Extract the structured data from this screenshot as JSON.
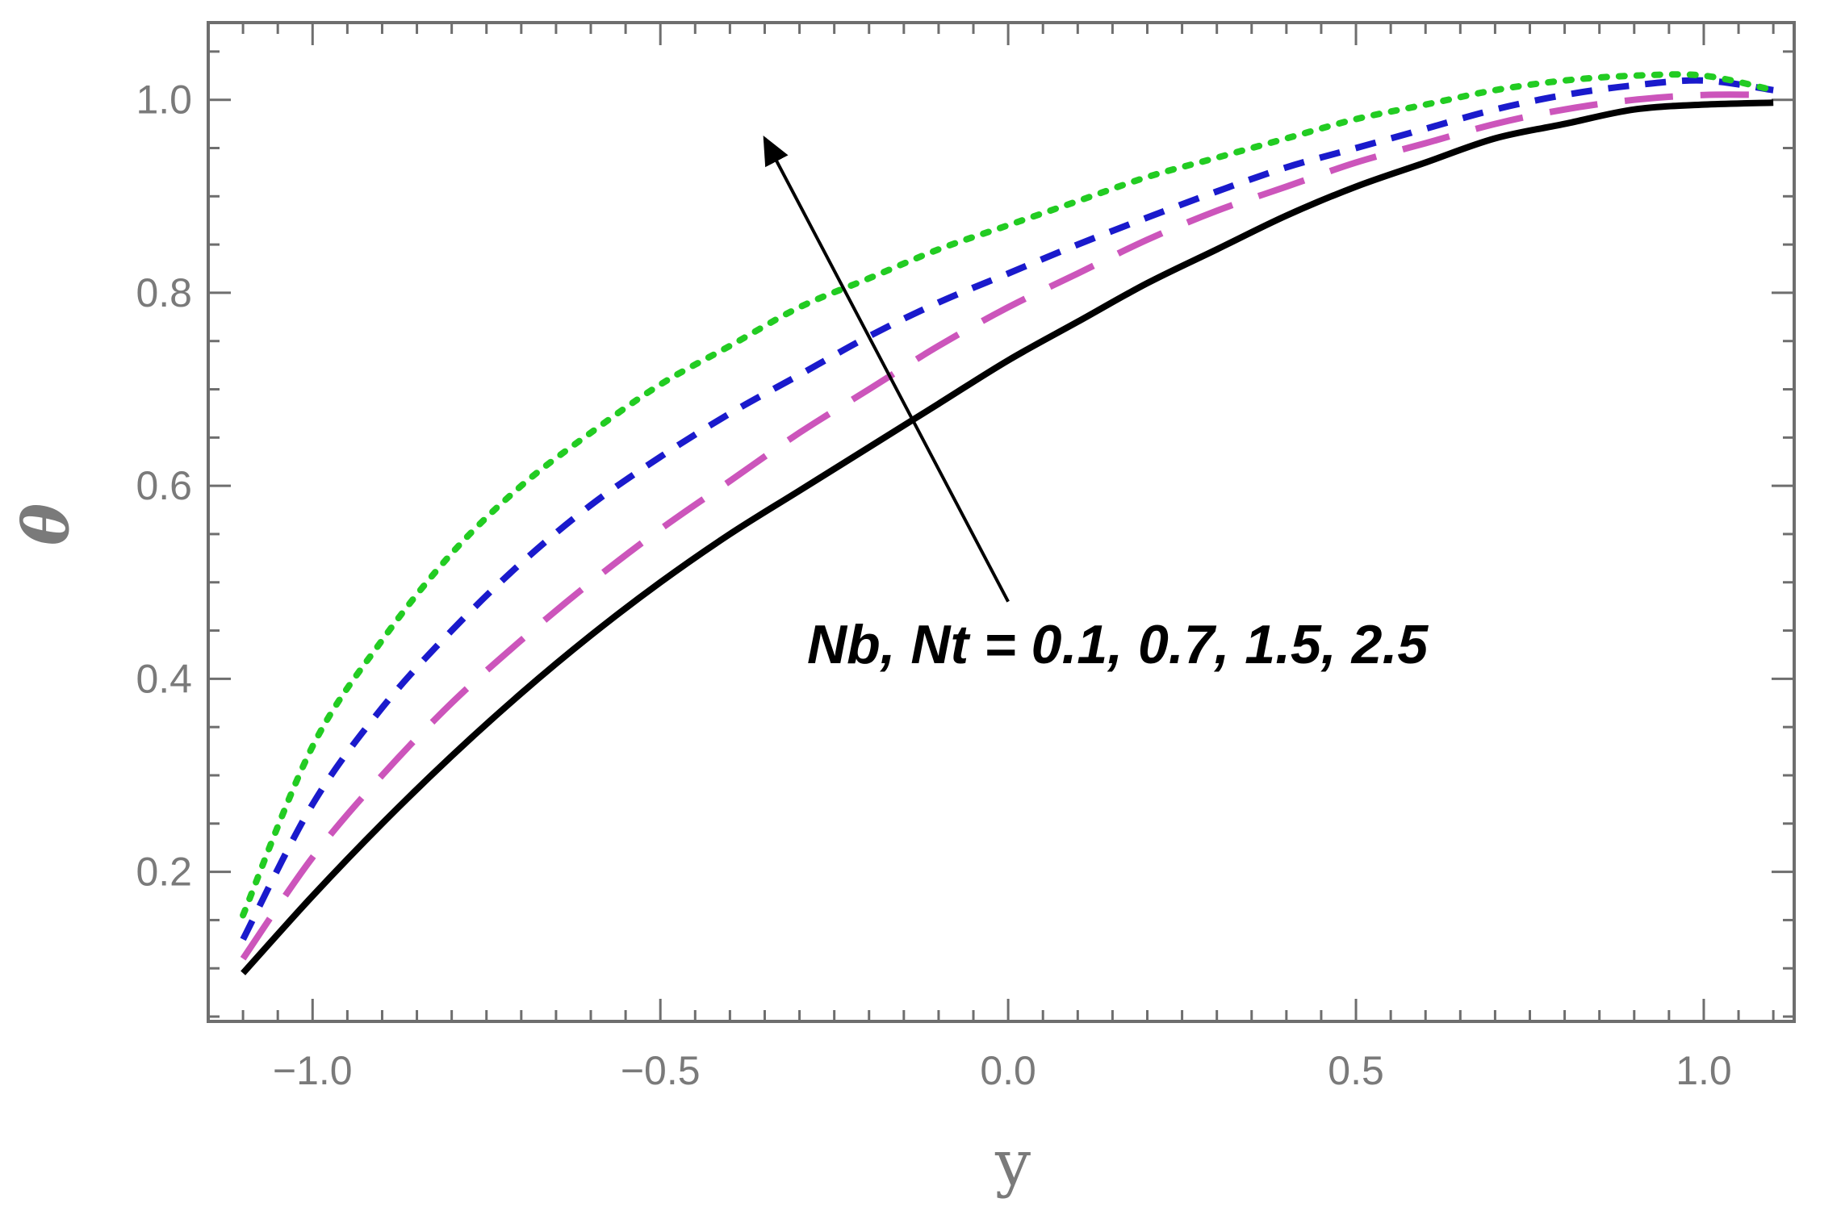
{
  "chart_data": {
    "type": "line",
    "xlabel": "y",
    "ylabel": "θ",
    "xlim": [
      -1.15,
      1.13
    ],
    "ylim": [
      0.045,
      1.08
    ],
    "x_ticks": [
      -1.0,
      -0.5,
      0.0,
      0.5,
      1.0
    ],
    "x_tick_labels": [
      "−1.0",
      "−0.5",
      "0.0",
      "0.5",
      "1.0"
    ],
    "y_ticks": [
      0.2,
      0.4,
      0.6,
      0.8,
      1.0
    ],
    "y_tick_labels": [
      "0.2",
      "0.4",
      "0.6",
      "0.8",
      "1.0"
    ],
    "grid": false,
    "annotation": {
      "text": "Nb, Nt = 0.1, 0.7, 1.5, 2.5",
      "arrow_from": [
        0.0,
        0.48
      ],
      "arrow_to": [
        -0.35,
        0.96
      ]
    },
    "series": [
      {
        "style": "solid",
        "color": "#000000",
        "x": [
          -1.1,
          -1.0,
          -0.9,
          -0.8,
          -0.7,
          -0.6,
          -0.5,
          -0.4,
          -0.3,
          -0.2,
          -0.1,
          0.0,
          0.1,
          0.2,
          0.3,
          0.4,
          0.5,
          0.6,
          0.7,
          0.8,
          0.9,
          1.0,
          1.1
        ],
        "y": [
          0.095,
          0.175,
          0.25,
          0.32,
          0.385,
          0.445,
          0.5,
          0.55,
          0.595,
          0.64,
          0.685,
          0.73,
          0.77,
          0.81,
          0.845,
          0.88,
          0.91,
          0.935,
          0.96,
          0.975,
          0.99,
          0.995,
          0.997
        ]
      },
      {
        "style": "long-dash",
        "color": "#cc55bb",
        "x": [
          -1.1,
          -1.0,
          -0.9,
          -0.8,
          -0.7,
          -0.6,
          -0.5,
          -0.4,
          -0.3,
          -0.2,
          -0.1,
          0.0,
          0.1,
          0.2,
          0.3,
          0.4,
          0.5,
          0.6,
          0.7,
          0.8,
          0.9,
          1.0,
          1.1
        ],
        "y": [
          0.11,
          0.215,
          0.3,
          0.375,
          0.44,
          0.5,
          0.555,
          0.605,
          0.655,
          0.7,
          0.745,
          0.785,
          0.82,
          0.855,
          0.885,
          0.91,
          0.935,
          0.955,
          0.975,
          0.99,
          1.0,
          1.005,
          1.005
        ]
      },
      {
        "style": "short-dash",
        "color": "#1a1acc",
        "x": [
          -1.1,
          -1.0,
          -0.9,
          -0.8,
          -0.7,
          -0.6,
          -0.5,
          -0.4,
          -0.3,
          -0.2,
          -0.1,
          0.0,
          0.1,
          0.2,
          0.3,
          0.4,
          0.5,
          0.6,
          0.7,
          0.8,
          0.9,
          1.0,
          1.1
        ],
        "y": [
          0.13,
          0.27,
          0.37,
          0.45,
          0.52,
          0.58,
          0.63,
          0.675,
          0.715,
          0.755,
          0.79,
          0.82,
          0.85,
          0.878,
          0.905,
          0.93,
          0.95,
          0.97,
          0.99,
          1.005,
          1.015,
          1.02,
          1.01
        ]
      },
      {
        "style": "dotted",
        "color": "#22cc22",
        "x": [
          -1.1,
          -1.0,
          -0.9,
          -0.8,
          -0.7,
          -0.6,
          -0.5,
          -0.4,
          -0.3,
          -0.2,
          -0.1,
          0.0,
          0.1,
          0.2,
          0.3,
          0.4,
          0.5,
          0.6,
          0.7,
          0.8,
          0.9,
          1.0,
          1.1
        ],
        "y": [
          0.155,
          0.33,
          0.44,
          0.53,
          0.6,
          0.655,
          0.705,
          0.745,
          0.785,
          0.815,
          0.845,
          0.87,
          0.895,
          0.92,
          0.94,
          0.96,
          0.98,
          0.995,
          1.01,
          1.02,
          1.025,
          1.025,
          1.01
        ]
      }
    ]
  }
}
